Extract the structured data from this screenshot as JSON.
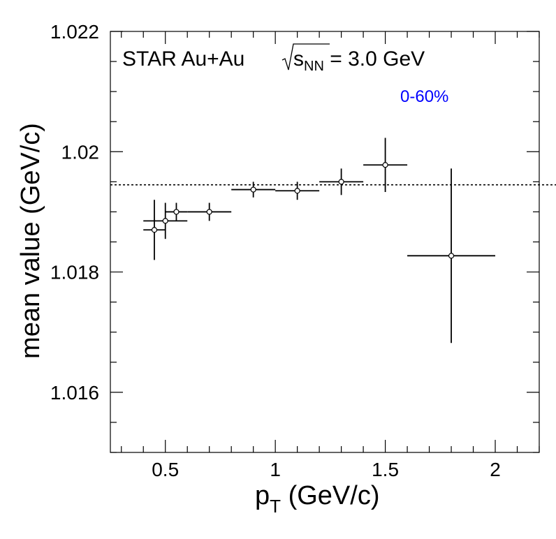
{
  "chart_data": {
    "type": "scatter",
    "xlabel_main": "p",
    "xlabel_sub": "T",
    "xlabel_rest": " (GeV/c)",
    "ylabel": "mean value (GeV/c)",
    "xlim": [
      0.25,
      2.2
    ],
    "ylim": [
      1.015,
      1.022
    ],
    "x_ticks": [
      0.5,
      1,
      1.5,
      2
    ],
    "x_tick_labels": [
      "0.5",
      "1",
      "1.5",
      "2"
    ],
    "y_ticks": [
      1.016,
      1.018,
      1.02,
      1.022
    ],
    "y_tick_labels": [
      "1.016",
      "1.018",
      "1.02",
      "1.022"
    ],
    "reference_line": {
      "y": 1.01945,
      "style": "dotted"
    },
    "points": [
      {
        "x": 0.45,
        "x_err": 0.05,
        "y": 1.0187,
        "y_err": 0.0005
      },
      {
        "x": 0.5,
        "x_err": 0.1,
        "y": 1.01885,
        "y_err": 0.0003
      },
      {
        "x": 0.55,
        "x_err": 0.05,
        "y": 1.019,
        "y_err": 0.00015
      },
      {
        "x": 0.7,
        "x_err": 0.1,
        "y": 1.019,
        "y_err": 0.00015
      },
      {
        "x": 0.9,
        "x_err": 0.1,
        "y": 1.01937,
        "y_err": 0.00013
      },
      {
        "x": 1.1,
        "x_err": 0.1,
        "y": 1.01935,
        "y_err": 0.00015
      },
      {
        "x": 1.3,
        "x_err": 0.1,
        "y": 1.0195,
        "y_err": 0.00022
      },
      {
        "x": 1.5,
        "x_err": 0.1,
        "y": 1.01978,
        "y_err": 0.00045
      },
      {
        "x": 1.8,
        "x_err": 0.2,
        "y": 1.01827,
        "y_err": 0.00145
      }
    ]
  },
  "annotations": {
    "experiment": "STAR Au+Au",
    "energy_prefix": "s",
    "energy_sub": "NN",
    "energy_value": " = 3.0 GeV",
    "centrality": "0-60%",
    "centrality_color": "#0000ff"
  }
}
